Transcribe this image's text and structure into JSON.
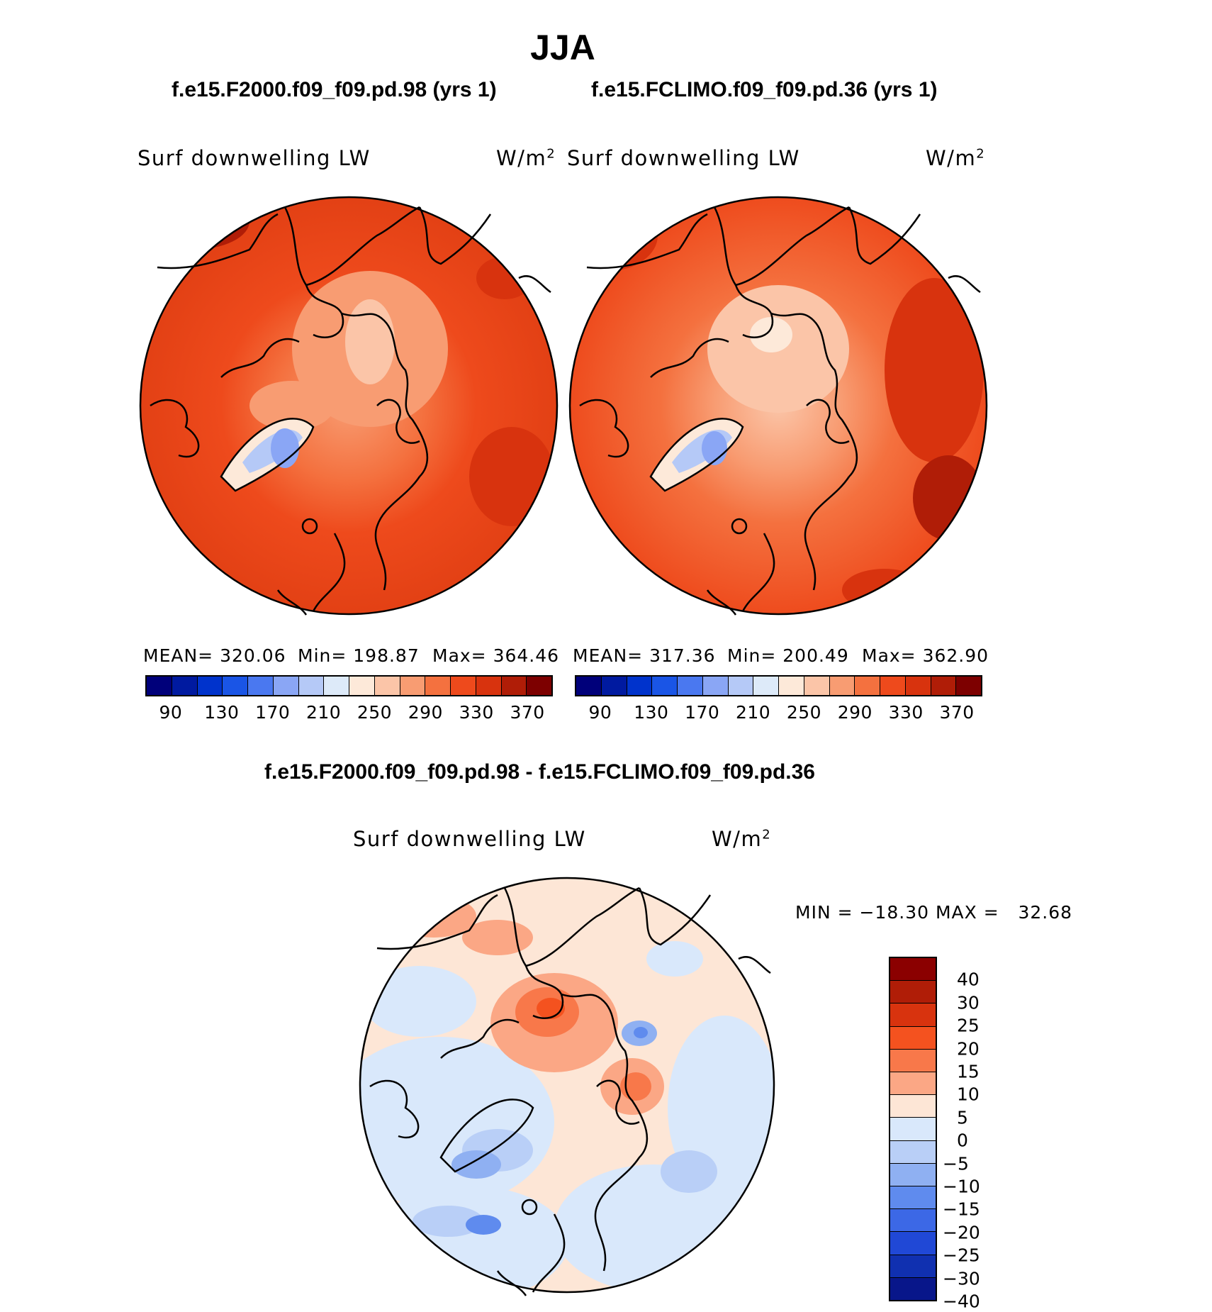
{
  "title": "JJA",
  "panels": [
    {
      "case": "f.e15.F2000.f09_f09.pd.98 (yrs 1)",
      "variable": "Surf downwelling LW",
      "units_base": "W/m",
      "units_exp": "2",
      "stats": {
        "mean": "MEAN= 320.06",
        "min": "Min= 198.87",
        "max": "Max= 364.46"
      }
    },
    {
      "case": "f.e15.FCLIMO.f09_f09.pd.36 (yrs 1)",
      "variable": "Surf downwelling LW",
      "units_base": "W/m",
      "units_exp": "2",
      "stats": {
        "mean": "MEAN= 317.36",
        "min": "Min= 200.49",
        "max": "Max= 362.90"
      }
    }
  ],
  "abs_colorbar": {
    "colors": [
      "#00007a",
      "#001aa0",
      "#0033cc",
      "#1a55e6",
      "#4a78f0",
      "#8aa6f5",
      "#b5c9f7",
      "#ddeaf9",
      "#fde9d9",
      "#fbc5a8",
      "#f89c72",
      "#f4713f",
      "#ee4a1c",
      "#d8330e",
      "#b01d07",
      "#7d0000"
    ],
    "labels": [
      "90",
      "130",
      "170",
      "210",
      "250",
      "290",
      "330",
      "370"
    ]
  },
  "diff": {
    "title": "f.e15.F2000.f09_f09.pd.98 - f.e15.FCLIMO.f09_f09.pd.36",
    "variable": "Surf downwelling LW",
    "units_base": "W/m",
    "units_exp": "2",
    "minmax": "MIN = −18.30 MAX =   32.68",
    "colors": [
      "#8b0000",
      "#b01d07",
      "#d8330e",
      "#f4521f",
      "#f8784a",
      "#fba785",
      "#fde6d6",
      "#d9e8fb",
      "#b9cff7",
      "#8fb0f2",
      "#5f8bee",
      "#3c68e6",
      "#2048d6",
      "#1030b0",
      "#08168a"
    ],
    "labels": [
      "40",
      "30",
      "25",
      "20",
      "15",
      "10",
      "5",
      "0",
      "−5",
      "−10",
      "−15",
      "−20",
      "−25",
      "−30",
      "−40"
    ]
  }
}
